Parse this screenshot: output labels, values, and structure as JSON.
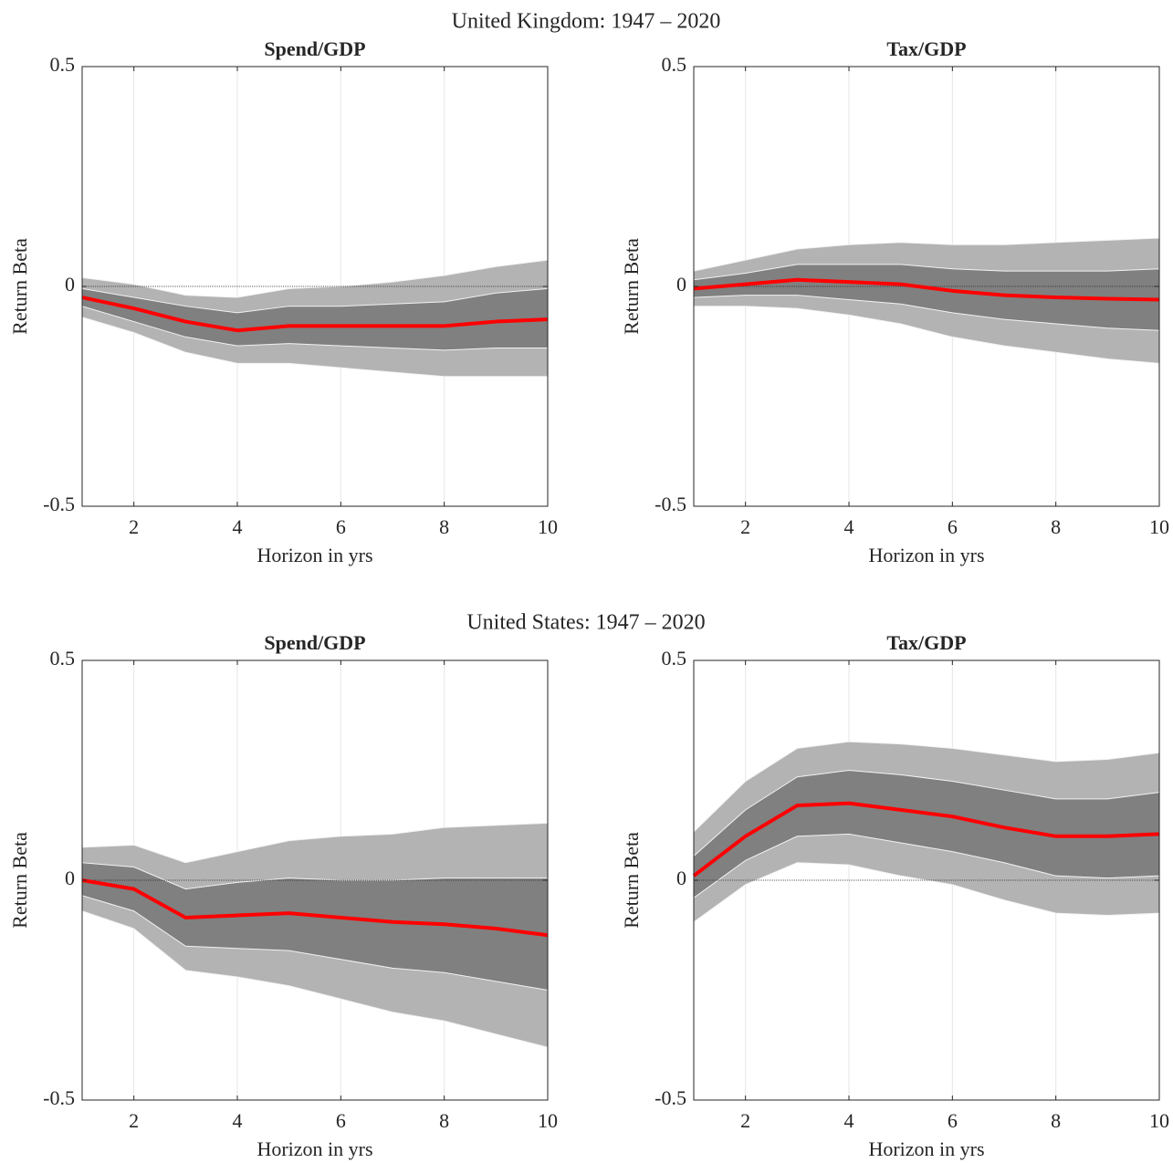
{
  "chart_data": [
    {
      "type": "band-line",
      "section_title": "United Kingdom: 1947 – 2020",
      "title": "Spend/GDP",
      "xlabel": "Horizon in yrs",
      "ylabel": "Return Beta",
      "x": [
        1,
        2,
        3,
        4,
        5,
        6,
        7,
        8,
        9,
        10
      ],
      "xlim": [
        1,
        10
      ],
      "xticks": [
        2,
        4,
        6,
        8,
        10
      ],
      "ylim": [
        -0.5,
        0.5
      ],
      "yticks": [
        -0.5,
        0,
        0.5
      ],
      "grid": "x",
      "zero_line": true,
      "bands": [
        {
          "color": "#b3b3b3",
          "upper": [
            0.02,
            0.005,
            -0.02,
            -0.025,
            -0.005,
            0.0,
            0.01,
            0.025,
            0.045,
            0.06
          ],
          "lower": [
            -0.07,
            -0.105,
            -0.15,
            -0.175,
            -0.175,
            -0.185,
            -0.195,
            -0.205,
            -0.205,
            -0.205
          ]
        },
        {
          "color": "#808080",
          "upper": [
            -0.005,
            -0.025,
            -0.045,
            -0.06,
            -0.045,
            -0.045,
            -0.04,
            -0.035,
            -0.015,
            -0.005
          ],
          "lower": [
            -0.045,
            -0.08,
            -0.115,
            -0.135,
            -0.13,
            -0.135,
            -0.14,
            -0.145,
            -0.14,
            -0.14
          ]
        }
      ],
      "line": {
        "color": "#ff0000",
        "values": [
          -0.025,
          -0.05,
          -0.08,
          -0.1,
          -0.09,
          -0.09,
          -0.09,
          -0.09,
          -0.08,
          -0.075
        ]
      }
    },
    {
      "type": "band-line",
      "title": "Tax/GDP",
      "xlabel": "Horizon in yrs",
      "ylabel": "Return Beta",
      "x": [
        1,
        2,
        3,
        4,
        5,
        6,
        7,
        8,
        9,
        10
      ],
      "xlim": [
        1,
        10
      ],
      "xticks": [
        2,
        4,
        6,
        8,
        10
      ],
      "ylim": [
        -0.5,
        0.5
      ],
      "yticks": [
        -0.5,
        0,
        0.5
      ],
      "grid": "x",
      "zero_line": true,
      "bands": [
        {
          "color": "#b3b3b3",
          "upper": [
            0.035,
            0.06,
            0.085,
            0.095,
            0.1,
            0.095,
            0.095,
            0.1,
            0.105,
            0.11
          ],
          "lower": [
            -0.045,
            -0.045,
            -0.05,
            -0.065,
            -0.085,
            -0.115,
            -0.135,
            -0.15,
            -0.165,
            -0.175
          ]
        },
        {
          "color": "#808080",
          "upper": [
            0.015,
            0.03,
            0.05,
            0.05,
            0.05,
            0.04,
            0.035,
            0.035,
            0.035,
            0.04
          ],
          "lower": [
            -0.025,
            -0.02,
            -0.02,
            -0.03,
            -0.04,
            -0.06,
            -0.075,
            -0.085,
            -0.095,
            -0.1
          ]
        }
      ],
      "line": {
        "color": "#ff0000",
        "values": [
          -0.005,
          0.005,
          0.015,
          0.01,
          0.005,
          -0.01,
          -0.02,
          -0.025,
          -0.028,
          -0.03
        ]
      }
    },
    {
      "type": "band-line",
      "section_title": "United States: 1947 – 2020",
      "title": "Spend/GDP",
      "xlabel": "Horizon in yrs",
      "ylabel": "Return Beta",
      "x": [
        1,
        2,
        3,
        4,
        5,
        6,
        7,
        8,
        9,
        10
      ],
      "xlim": [
        1,
        10
      ],
      "xticks": [
        2,
        4,
        6,
        8,
        10
      ],
      "ylim": [
        -0.5,
        0.5
      ],
      "yticks": [
        -0.5,
        0,
        0.5
      ],
      "grid": "x",
      "zero_line": true,
      "bands": [
        {
          "color": "#b3b3b3",
          "upper": [
            0.075,
            0.08,
            0.04,
            0.065,
            0.09,
            0.1,
            0.105,
            0.12,
            0.125,
            0.13
          ],
          "lower": [
            -0.07,
            -0.11,
            -0.205,
            -0.22,
            -0.24,
            -0.27,
            -0.3,
            -0.32,
            -0.35,
            -0.38
          ]
        },
        {
          "color": "#808080",
          "upper": [
            0.04,
            0.03,
            -0.02,
            -0.005,
            0.005,
            0.0,
            0.0,
            0.005,
            0.005,
            0.005
          ],
          "lower": [
            -0.035,
            -0.07,
            -0.15,
            -0.155,
            -0.16,
            -0.18,
            -0.2,
            -0.21,
            -0.23,
            -0.25
          ]
        }
      ],
      "line": {
        "color": "#ff0000",
        "values": [
          0.0,
          -0.02,
          -0.085,
          -0.08,
          -0.075,
          -0.085,
          -0.095,
          -0.1,
          -0.11,
          -0.125
        ]
      }
    },
    {
      "type": "band-line",
      "title": "Tax/GDP",
      "xlabel": "Horizon in yrs",
      "ylabel": "Return Beta",
      "x": [
        1,
        2,
        3,
        4,
        5,
        6,
        7,
        8,
        9,
        10
      ],
      "xlim": [
        1,
        10
      ],
      "xticks": [
        2,
        4,
        6,
        8,
        10
      ],
      "ylim": [
        -0.5,
        0.5
      ],
      "yticks": [
        -0.5,
        0,
        0.5
      ],
      "grid": "x",
      "zero_line": true,
      "bands": [
        {
          "color": "#b3b3b3",
          "upper": [
            0.11,
            0.225,
            0.3,
            0.315,
            0.31,
            0.3,
            0.285,
            0.27,
            0.275,
            0.29
          ],
          "lower": [
            -0.095,
            -0.01,
            0.04,
            0.035,
            0.01,
            -0.01,
            -0.045,
            -0.075,
            -0.08,
            -0.075
          ]
        },
        {
          "color": "#808080",
          "upper": [
            0.055,
            0.16,
            0.235,
            0.25,
            0.24,
            0.225,
            0.205,
            0.185,
            0.185,
            0.2
          ],
          "lower": [
            -0.04,
            0.045,
            0.1,
            0.105,
            0.085,
            0.065,
            0.04,
            0.01,
            0.005,
            0.01
          ]
        }
      ],
      "line": {
        "color": "#ff0000",
        "values": [
          0.01,
          0.1,
          0.17,
          0.175,
          0.16,
          0.145,
          0.12,
          0.1,
          0.1,
          0.105
        ]
      }
    }
  ]
}
